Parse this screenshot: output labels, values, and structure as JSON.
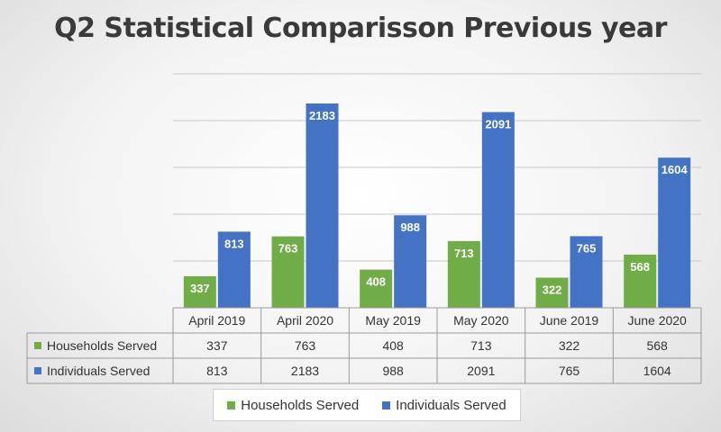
{
  "chart_data": {
    "type": "bar",
    "title": "Q2 Statistical Comparisson Previous year",
    "categories": [
      "April 2019",
      "April 2020",
      "May 2019",
      "May 2020",
      "June 2019",
      "June 2020"
    ],
    "series": [
      {
        "name": "Households Served",
        "color": "#70ad47",
        "values": [
          337,
          763,
          408,
          713,
          322,
          568
        ]
      },
      {
        "name": "Individuals Served",
        "color": "#4472c4",
        "values": [
          813,
          2183,
          988,
          2091,
          765,
          1604
        ]
      }
    ],
    "ylim": [
      0,
      2500
    ],
    "grid": true,
    "data_table": true,
    "legend_position": "bottom"
  }
}
